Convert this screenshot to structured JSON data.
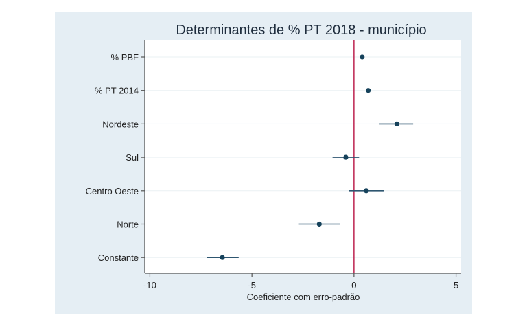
{
  "chart_data": {
    "type": "scatter",
    "subtype": "coefficient-plot",
    "title": "Determinantes de % PT 2018 - município",
    "xlabel": "Coeficiente com erro-padrão",
    "ylabel": "",
    "xlim": [
      -10.25,
      5.25
    ],
    "xticks": [
      -10,
      -5,
      0,
      5
    ],
    "xtick_labels": [
      "-10",
      "-5",
      "0",
      "5"
    ],
    "reference_line": {
      "x": 0,
      "color": "#c0305a"
    },
    "grid": true,
    "legend": "none",
    "marker_color": "#16425b",
    "categories": [
      "% PBF",
      "% PT 2014",
      "Nordeste",
      "Sul",
      "Centro Oeste",
      "Norte",
      "Constante"
    ],
    "series": [
      {
        "name": "Coeficiente",
        "values": [
          0.4,
          0.7,
          2.1,
          -0.4,
          0.6,
          -1.7,
          -6.45
        ],
        "ci_low": [
          0.4,
          0.7,
          1.25,
          -1.05,
          -0.25,
          -2.7,
          -7.2
        ],
        "ci_high": [
          0.4,
          0.7,
          2.9,
          0.25,
          1.45,
          -0.7,
          -5.65
        ]
      }
    ]
  }
}
